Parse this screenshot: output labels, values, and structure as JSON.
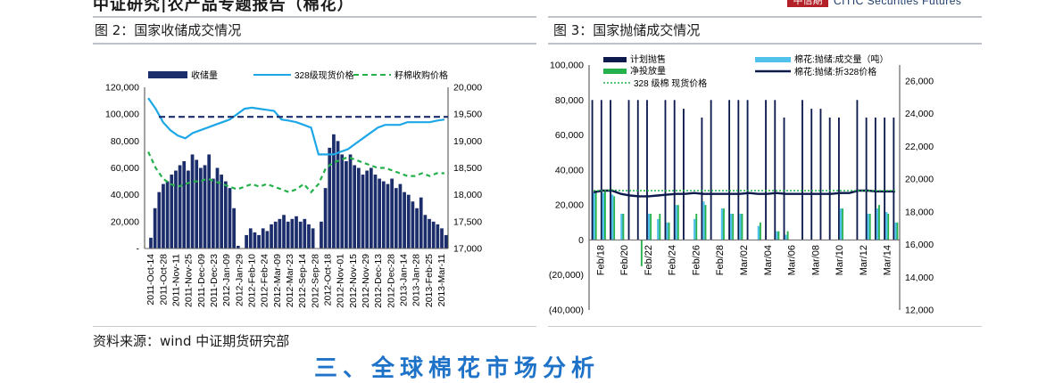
{
  "header": {
    "title": "中证研究|农产品专题报告（棉花）",
    "logo_cn": "中信期",
    "logo_en": "CITIC Securities Futures"
  },
  "captions": {
    "fig2": "图 2：国家收储成交情况",
    "fig3": "图 3：国家抛储成交情况"
  },
  "source": "资料来源：wind  中证期货研究部",
  "section_title": "三、全球棉花市场分析",
  "colors": {
    "navy": "#1c2d6b",
    "cyan": "#1ea7e6",
    "green": "#24b04a",
    "lightcyan": "#4fc1ea",
    "dark": "#0d1a4d"
  },
  "chart_data": [
    {
      "type": "bar",
      "legend": [
        "收储量",
        "328级现货价格",
        "籽棉收购价格"
      ],
      "y_left_ticks": [
        "120,000",
        "100,000",
        "80,000",
        "60,000",
        "40,000",
        "20,000",
        "-"
      ],
      "y_right_ticks": [
        "20,000",
        "19,500",
        "19,000",
        "18,500",
        "18,000",
        "17,500",
        "17,000"
      ],
      "ylim_left": [
        0,
        120000
      ],
      "ylim_right": [
        17000,
        20000
      ],
      "x_ticks": [
        "2011-Oct-14",
        "2011-Oct-28",
        "2011-Nov-11",
        "2011-Nov-25",
        "2011-Dec-09",
        "2011-Dec-23",
        "2012-Jan-09",
        "2012-Jan-29",
        "2012-Feb-10",
        "2012-Feb-24",
        "2012-Mar-09",
        "2012-Mar-23",
        "2012-Sep-14",
        "2012-Sep-28",
        "2012-Oct-18",
        "2012-Nov-01",
        "2012-Nov-15",
        "2012-Nov-29",
        "2012-Dec-13",
        "2012-Dec-28",
        "2013-Jan-14",
        "2013-Jan-28",
        "2013-Feb-25",
        "2013-Mar-11"
      ],
      "series": [
        {
          "name": "收储量",
          "kind": "bar",
          "values": [
            0,
            8000,
            30000,
            42000,
            48000,
            50000,
            55000,
            58000,
            62000,
            65000,
            58000,
            70000,
            66000,
            60000,
            62000,
            70000,
            52000,
            60000,
            55000,
            50000,
            45000,
            30000,
            2000,
            0,
            10000,
            15000,
            12000,
            10000,
            15000,
            13000,
            18000,
            20000,
            22000,
            25000,
            20000,
            22000,
            24000,
            20000,
            22000,
            18000,
            15000,
            0,
            20000,
            45000,
            75000,
            85000,
            80000,
            70000,
            65000,
            70000,
            62000,
            60000,
            55000,
            58000,
            60000,
            55000,
            52000,
            50000,
            48000,
            52000,
            45000,
            48000,
            42000,
            40000,
            35000,
            30000,
            38000,
            25000,
            22000,
            20000,
            18000,
            15000,
            10000
          ]
        },
        {
          "name": "328级现货价格",
          "kind": "line",
          "axis": "right",
          "values": [
            19800,
            19600,
            19350,
            19200,
            19100,
            19050,
            19150,
            19200,
            19250,
            19300,
            19350,
            19400,
            19500,
            19600,
            19620,
            19600,
            19580,
            19560,
            19400,
            19380,
            19350,
            19300,
            19250,
            18750,
            18750,
            18750,
            18800,
            18850,
            18950,
            19050,
            19150,
            19250,
            19300,
            19300,
            19300,
            19350,
            19350,
            19350,
            19350,
            19380,
            19400
          ]
        },
        {
          "name": "籽棉收购价格",
          "kind": "line",
          "axis": "right",
          "values": [
            18800,
            18500,
            18300,
            18200,
            18150,
            18200,
            18250,
            18250,
            18300,
            18250,
            18200,
            18150,
            18100,
            18150,
            18200,
            18150,
            18200,
            18150,
            18100,
            18050,
            18100,
            18200,
            18050,
            18200,
            18500,
            18600,
            18650,
            18700,
            18650,
            18600,
            18550,
            18500,
            18500,
            18450,
            18400,
            18350,
            18350,
            18400,
            18350,
            18400,
            18400
          ]
        }
      ],
      "reference_line": {
        "axis": "left",
        "value": 98000
      }
    },
    {
      "type": "bar",
      "legend": [
        "计划抛售",
        "净投放量",
        "328 级棉 现货价格",
        "棉花:抛储:成交量（吨）",
        "棉花:抛储:折328价格"
      ],
      "y_left_ticks": [
        "100,000",
        "80,000",
        "60,000",
        "40,000",
        "20,000",
        "0",
        "(20,000)",
        "(40,000)"
      ],
      "y_right_ticks": [
        "26,000",
        "24,000",
        "22,000",
        "20,000",
        "18,000",
        "16,000",
        "14,000",
        "12,000"
      ],
      "ylim_left": [
        -40000,
        100000
      ],
      "ylim_right": [
        12000,
        27000
      ],
      "x_ticks": [
        "Feb/18",
        "Feb/20",
        "Feb/22",
        "Feb/24",
        "Feb/26",
        "Feb/28",
        "Mar/02",
        "Mar/04",
        "Mar/06",
        "Mar/08",
        "Mar/10",
        "Mar/12",
        "Mar/14"
      ],
      "series": [
        {
          "name": "计划抛售",
          "kind": "bar",
          "values": [
            80000,
            80000,
            80000,
            0,
            80000,
            80000,
            80000,
            0,
            80000,
            80000,
            75000,
            0,
            70000,
            80000,
            0,
            80000,
            80000,
            80000,
            0,
            80000,
            80000,
            70000,
            0,
            80000,
            75000,
            75000,
            70000,
            70000,
            0,
            80000,
            70000,
            70000,
            70000,
            70000
          ]
        },
        {
          "name": "净投放量",
          "kind": "bar",
          "values": [
            28000,
            28000,
            25000,
            15000,
            0,
            -15000,
            15000,
            15000,
            10000,
            20000,
            0,
            15000,
            20000,
            0,
            18000,
            15000,
            15000,
            0,
            10000,
            0,
            5000,
            5000,
            0,
            0,
            0,
            0,
            0,
            18000,
            0,
            0,
            15000,
            20000,
            15000,
            10000
          ]
        },
        {
          "name": "棉花:抛储:成交量（吨）",
          "kind": "bar",
          "values": [
            27000,
            27000,
            26000,
            15000,
            0,
            0,
            15000,
            12000,
            10000,
            20000,
            0,
            12000,
            22000,
            0,
            18000,
            15000,
            15000,
            0,
            8000,
            0,
            5000,
            3000,
            0,
            0,
            0,
            0,
            0,
            18000,
            0,
            0,
            15000,
            18000,
            16000,
            10000
          ]
        },
        {
          "name": "棉花:抛储:折328价格",
          "kind": "line",
          "axis": "right",
          "values": [
            19200,
            19300,
            19300,
            19100,
            19000,
            18950,
            18950,
            19000,
            19050,
            19100,
            19100,
            19150,
            19100,
            19100,
            19100,
            19100,
            19100,
            19150,
            19100,
            19100,
            19150,
            19100,
            19100,
            19100,
            19100,
            19100,
            19100,
            19150,
            19150,
            19300,
            19300,
            19250,
            19250,
            19250
          ]
        },
        {
          "name": "328 级棉 现货价格",
          "kind": "line",
          "axis": "right",
          "values": [
            19300,
            19300,
            19350,
            19300,
            19300,
            19300,
            19300,
            19300,
            19300,
            19300,
            19300,
            19300,
            19300,
            19300,
            19300,
            19300,
            19300,
            19300,
            19300,
            19300,
            19300,
            19300,
            19300,
            19300,
            19300,
            19300,
            19300,
            19300,
            19300,
            19300,
            19300,
            19300,
            19300,
            19300
          ]
        }
      ]
    }
  ]
}
